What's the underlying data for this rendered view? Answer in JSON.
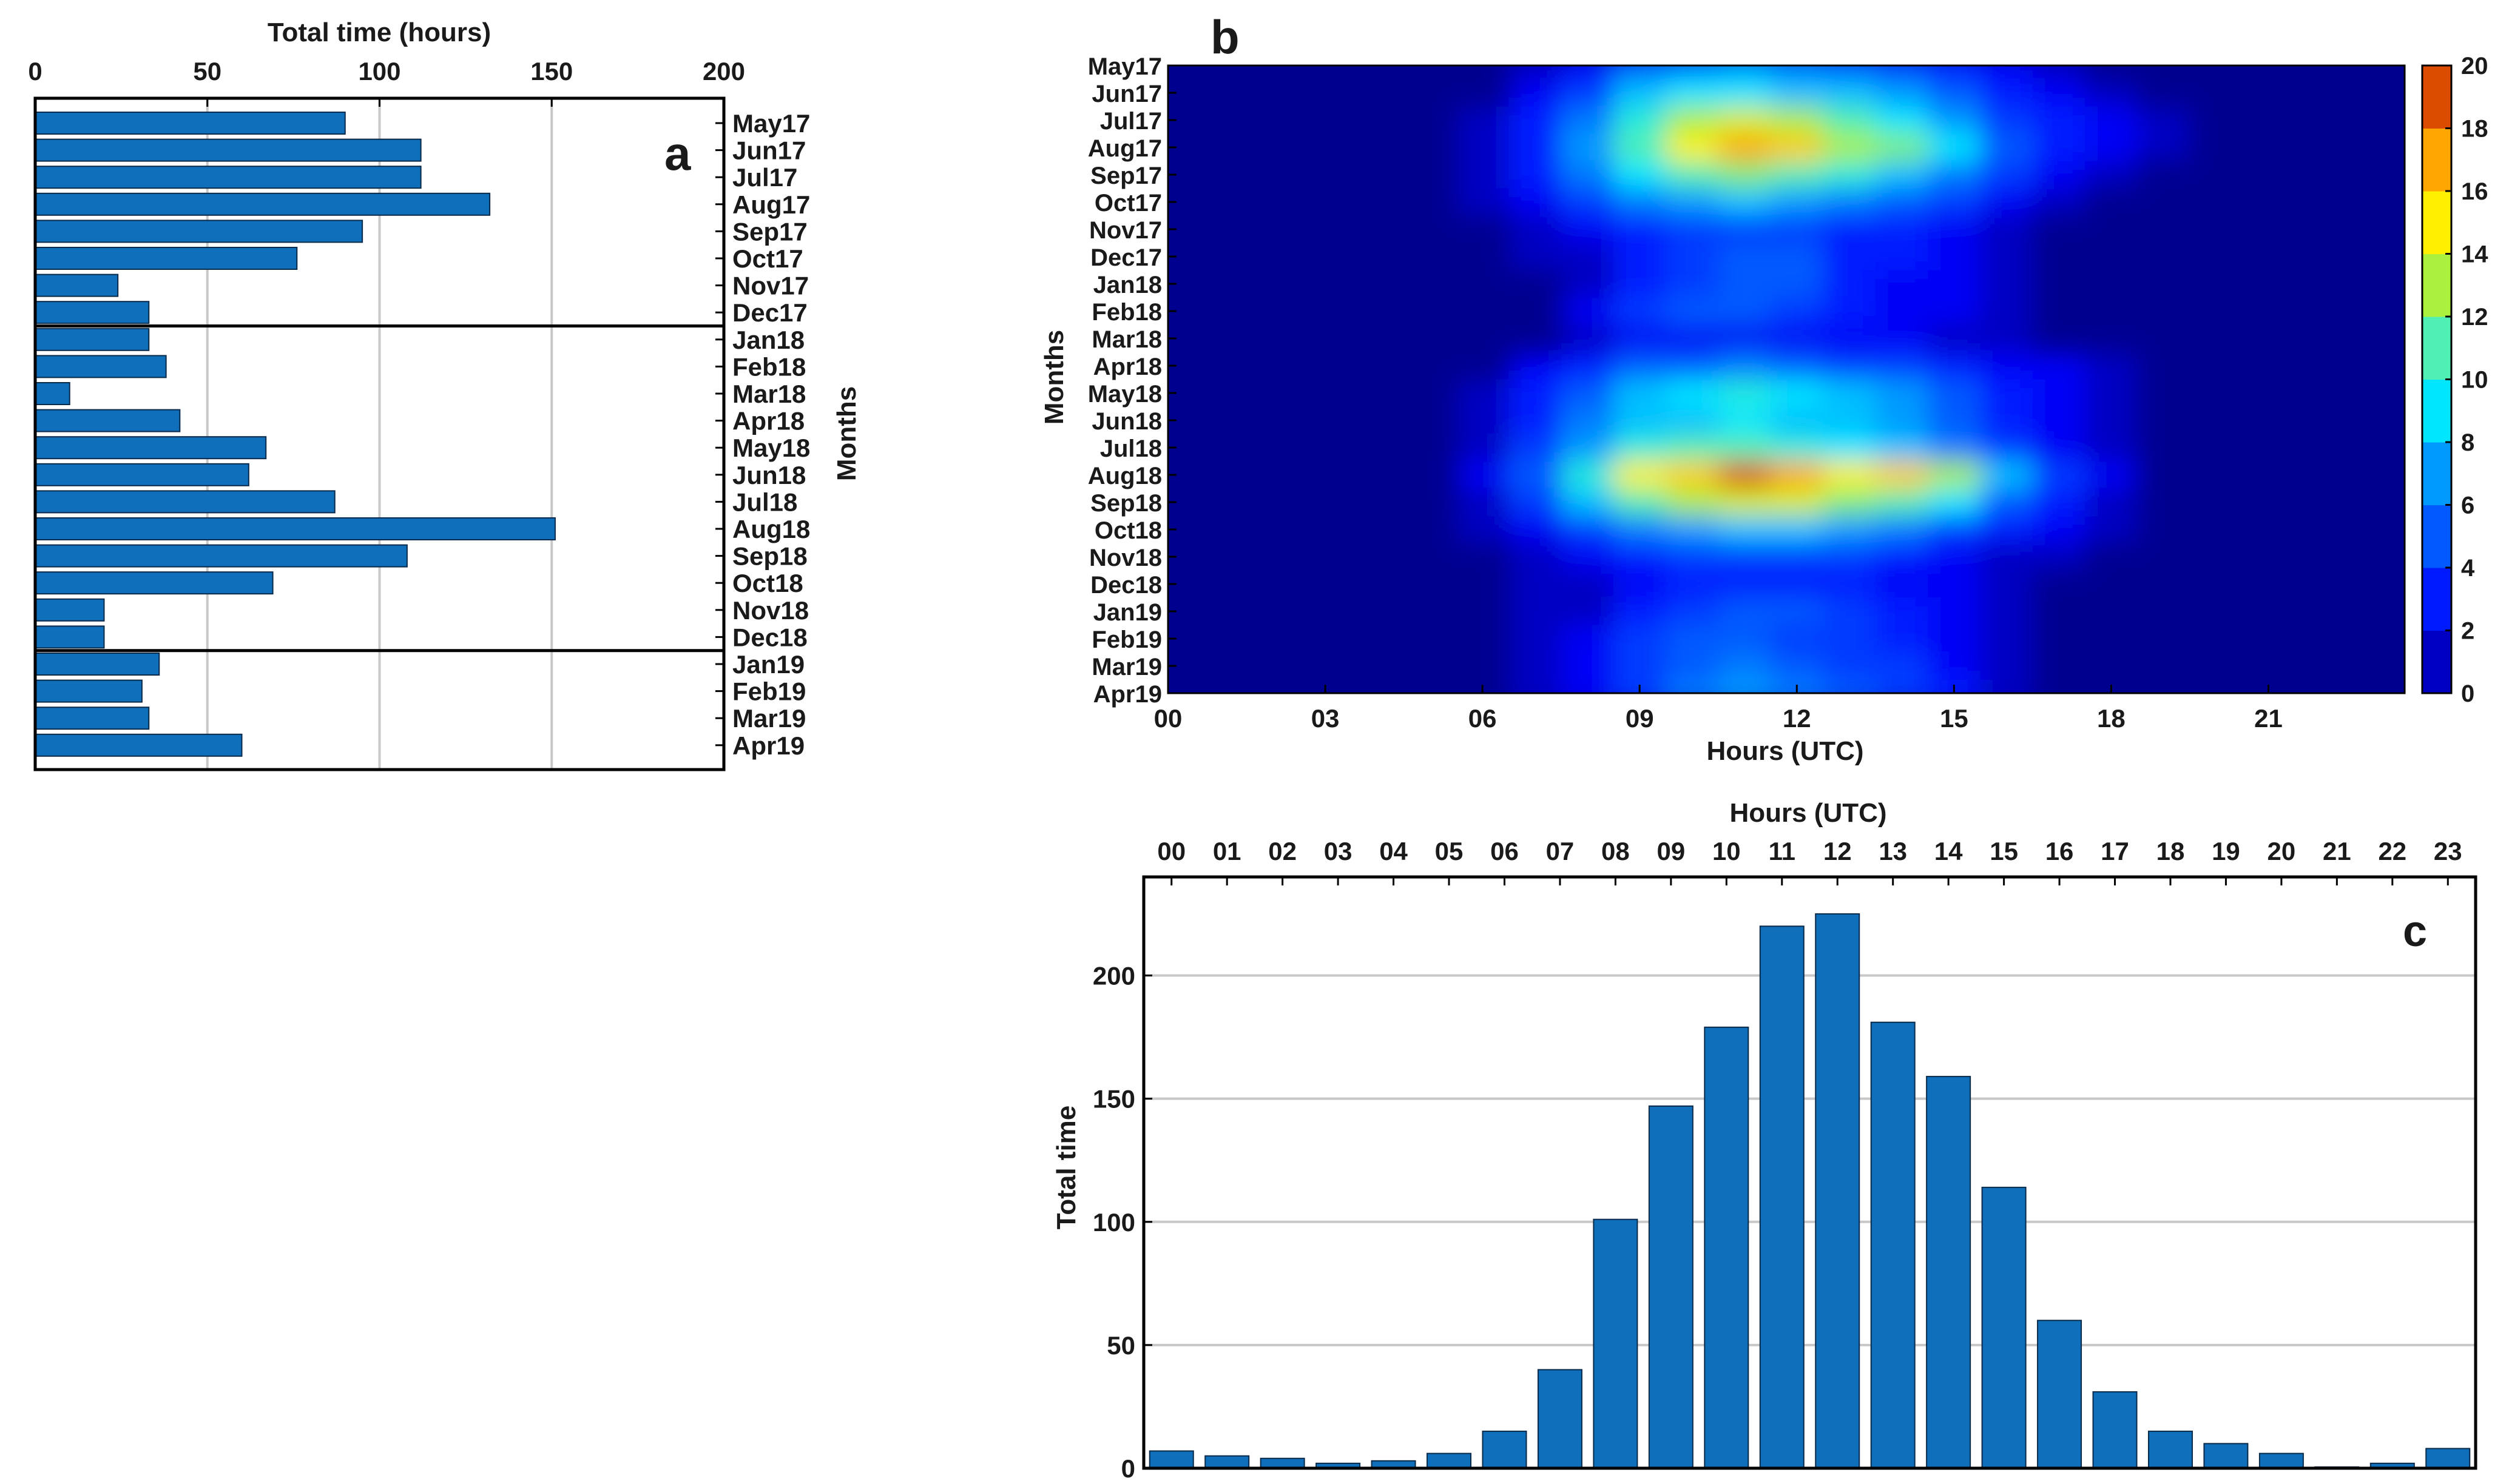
{
  "panel_letters": {
    "a": "a",
    "b": "b",
    "c": "c"
  },
  "colors": {
    "bar": "#0f6fba",
    "bar_edge": "#0a2a4a",
    "grid": "#c8c8c8",
    "axis": "#000000"
  },
  "chart_data": [
    {
      "panel": "a",
      "type": "bar",
      "orientation": "horizontal",
      "xlabel": "Total time (hours)",
      "ylabel": "Months",
      "xlim": [
        0,
        200
      ],
      "xticks": [
        0,
        50,
        100,
        150,
        200
      ],
      "grid": true,
      "separators_after": [
        "Dec17",
        "Dec18"
      ],
      "categories": [
        "May17",
        "Jun17",
        "Jul17",
        "Aug17",
        "Sep17",
        "Oct17",
        "Nov17",
        "Dec17",
        "Jan18",
        "Feb18",
        "Mar18",
        "Apr18",
        "May18",
        "Jun18",
        "Jul18",
        "Aug18",
        "Sep18",
        "Oct18",
        "Nov18",
        "Dec18",
        "Jan19",
        "Feb19",
        "Mar19",
        "Apr19"
      ],
      "values": [
        90,
        112,
        112,
        132,
        95,
        76,
        24,
        33,
        33,
        38,
        10,
        42,
        67,
        62,
        87,
        151,
        108,
        69,
        20,
        20,
        36,
        31,
        33,
        60
      ]
    },
    {
      "panel": "b",
      "type": "heatmap",
      "style": "filled-contour",
      "xlabel": "Hours (UTC)",
      "ylabel": "Months",
      "xticks": [
        "00",
        "03",
        "06",
        "09",
        "12",
        "15",
        "18",
        "21"
      ],
      "x": [
        0,
        1,
        2,
        3,
        4,
        5,
        6,
        7,
        8,
        9,
        10,
        11,
        12,
        13,
        14,
        15,
        16,
        17,
        18,
        19,
        20,
        21,
        22,
        23
      ],
      "y": [
        "May17",
        "Jun17",
        "Jul17",
        "Aug17",
        "Sep17",
        "Oct17",
        "Nov17",
        "Dec17",
        "Jan18",
        "Feb18",
        "Mar18",
        "Apr18",
        "May18",
        "Jun18",
        "Jul18",
        "Aug18",
        "Sep18",
        "Oct18",
        "Nov18",
        "Dec18",
        "Jan19",
        "Feb19",
        "Mar19",
        "Apr19"
      ],
      "colorbar_ticks": [
        0,
        2,
        4,
        6,
        8,
        10,
        12,
        14,
        16,
        18,
        20
      ],
      "clim": [
        0,
        20
      ],
      "colormap": "jet",
      "z": [
        [
          0,
          0,
          0,
          0,
          0,
          0,
          0,
          1,
          2,
          5,
          6,
          7,
          6,
          5,
          4,
          3,
          2,
          1,
          0,
          0,
          0,
          0,
          0,
          0
        ],
        [
          0,
          0,
          0,
          0,
          0,
          0,
          0,
          2,
          4,
          8,
          9,
          9,
          8,
          8,
          7,
          5,
          3,
          2,
          1,
          0,
          0,
          0,
          0,
          0
        ],
        [
          0,
          0,
          0,
          0,
          0,
          0,
          1,
          3,
          6,
          10,
          13,
          14,
          13,
          11,
          9,
          7,
          4,
          3,
          2,
          1,
          0,
          0,
          0,
          0
        ],
        [
          0,
          0,
          0,
          0,
          0,
          0,
          1,
          3,
          7,
          11,
          15,
          17,
          16,
          13,
          12,
          9,
          5,
          3,
          2,
          1,
          0,
          0,
          0,
          0
        ],
        [
          0,
          0,
          0,
          0,
          0,
          0,
          1,
          3,
          6,
          9,
          11,
          12,
          11,
          10,
          8,
          6,
          4,
          2,
          1,
          0,
          0,
          0,
          0,
          0
        ],
        [
          0,
          0,
          0,
          0,
          0,
          0,
          1,
          2,
          4,
          6,
          7,
          8,
          7,
          6,
          5,
          4,
          2,
          1,
          0,
          0,
          0,
          0,
          0,
          0
        ],
        [
          0,
          0,
          0,
          0,
          0,
          0,
          0,
          1,
          2,
          3,
          4,
          4,
          4,
          3,
          3,
          2,
          1,
          0,
          0,
          0,
          0,
          0,
          0,
          0
        ],
        [
          0,
          0,
          0,
          0,
          0,
          0,
          0,
          1,
          1,
          3,
          4,
          5,
          5,
          3,
          3,
          2,
          1,
          0,
          0,
          0,
          0,
          0,
          0,
          0
        ],
        [
          0,
          0,
          0,
          0,
          0,
          0,
          0,
          0,
          1,
          3,
          4,
          5,
          5,
          3,
          2,
          2,
          1,
          0,
          0,
          0,
          0,
          0,
          0,
          0
        ],
        [
          0,
          0,
          0,
          0,
          0,
          0,
          0,
          0,
          2,
          4,
          5,
          5,
          4,
          3,
          2,
          2,
          1,
          0,
          0,
          0,
          0,
          0,
          0,
          0
        ],
        [
          0,
          0,
          0,
          0,
          0,
          0,
          0,
          0,
          1,
          2,
          2,
          2,
          2,
          2,
          2,
          1,
          1,
          0,
          0,
          0,
          0,
          0,
          0,
          0
        ],
        [
          0,
          0,
          0,
          0,
          0,
          0,
          0,
          2,
          3,
          5,
          5,
          6,
          5,
          4,
          4,
          3,
          2,
          2,
          1,
          0,
          0,
          0,
          0,
          0
        ],
        [
          0,
          0,
          0,
          0,
          0,
          0,
          1,
          3,
          5,
          8,
          9,
          10,
          9,
          8,
          7,
          5,
          3,
          2,
          1,
          0,
          0,
          0,
          0,
          0
        ],
        [
          0,
          0,
          0,
          0,
          0,
          0,
          1,
          3,
          6,
          8,
          8,
          9,
          8,
          8,
          7,
          5,
          3,
          2,
          1,
          0,
          0,
          0,
          0,
          0
        ],
        [
          0,
          0,
          0,
          0,
          0,
          0,
          1,
          4,
          7,
          10,
          11,
          11,
          10,
          9,
          8,
          6,
          4,
          2,
          1,
          0,
          0,
          0,
          0,
          0
        ],
        [
          0,
          0,
          0,
          0,
          0,
          0,
          2,
          5,
          10,
          15,
          16,
          19,
          17,
          15,
          16,
          13,
          8,
          4,
          2,
          0,
          0,
          0,
          0,
          0
        ],
        [
          0,
          0,
          0,
          0,
          0,
          0,
          1,
          4,
          8,
          11,
          13,
          14,
          14,
          12,
          11,
          9,
          5,
          3,
          1,
          0,
          0,
          0,
          0,
          0
        ],
        [
          0,
          0,
          0,
          0,
          0,
          0,
          1,
          2,
          4,
          6,
          7,
          8,
          8,
          7,
          6,
          4,
          3,
          2,
          1,
          0,
          0,
          0,
          0,
          0
        ],
        [
          0,
          0,
          0,
          0,
          0,
          0,
          0,
          1,
          2,
          3,
          4,
          4,
          4,
          4,
          3,
          2,
          1,
          1,
          0,
          0,
          0,
          0,
          0,
          0
        ],
        [
          0,
          0,
          0,
          0,
          0,
          0,
          0,
          1,
          1,
          2,
          3,
          3,
          3,
          3,
          2,
          2,
          1,
          0,
          0,
          0,
          0,
          0,
          0,
          0
        ],
        [
          0,
          0,
          0,
          0,
          0,
          0,
          0,
          1,
          1,
          3,
          4,
          5,
          5,
          4,
          3,
          2,
          1,
          0,
          0,
          0,
          0,
          0,
          0,
          0
        ],
        [
          0,
          0,
          0,
          0,
          0,
          0,
          0,
          1,
          2,
          4,
          5,
          5,
          4,
          4,
          3,
          2,
          1,
          0,
          0,
          0,
          0,
          0,
          0,
          0
        ],
        [
          0,
          0,
          0,
          0,
          0,
          0,
          0,
          1,
          2,
          4,
          5,
          6,
          5,
          4,
          4,
          2,
          1,
          0,
          0,
          0,
          0,
          0,
          0,
          0
        ],
        [
          0,
          0,
          0,
          0,
          0,
          0,
          0,
          1,
          2,
          4,
          6,
          7,
          6,
          5,
          4,
          3,
          1,
          0,
          0,
          0,
          0,
          0,
          0,
          0
        ]
      ]
    },
    {
      "panel": "c",
      "type": "bar",
      "orientation": "vertical",
      "xlabel": "Hours (UTC)",
      "ylabel": "Total time",
      "ylim": [
        0,
        240
      ],
      "yticks": [
        0,
        50,
        100,
        150,
        200
      ],
      "grid": true,
      "categories": [
        "00",
        "01",
        "02",
        "03",
        "04",
        "05",
        "06",
        "07",
        "08",
        "09",
        "10",
        "11",
        "12",
        "13",
        "14",
        "15",
        "16",
        "17",
        "18",
        "19",
        "20",
        "21",
        "22",
        "23"
      ],
      "values": [
        7,
        5,
        4,
        2,
        3,
        6,
        15,
        40,
        101,
        147,
        179,
        220,
        225,
        181,
        159,
        114,
        60,
        31,
        15,
        10,
        6,
        0.5,
        2,
        8
      ]
    }
  ]
}
